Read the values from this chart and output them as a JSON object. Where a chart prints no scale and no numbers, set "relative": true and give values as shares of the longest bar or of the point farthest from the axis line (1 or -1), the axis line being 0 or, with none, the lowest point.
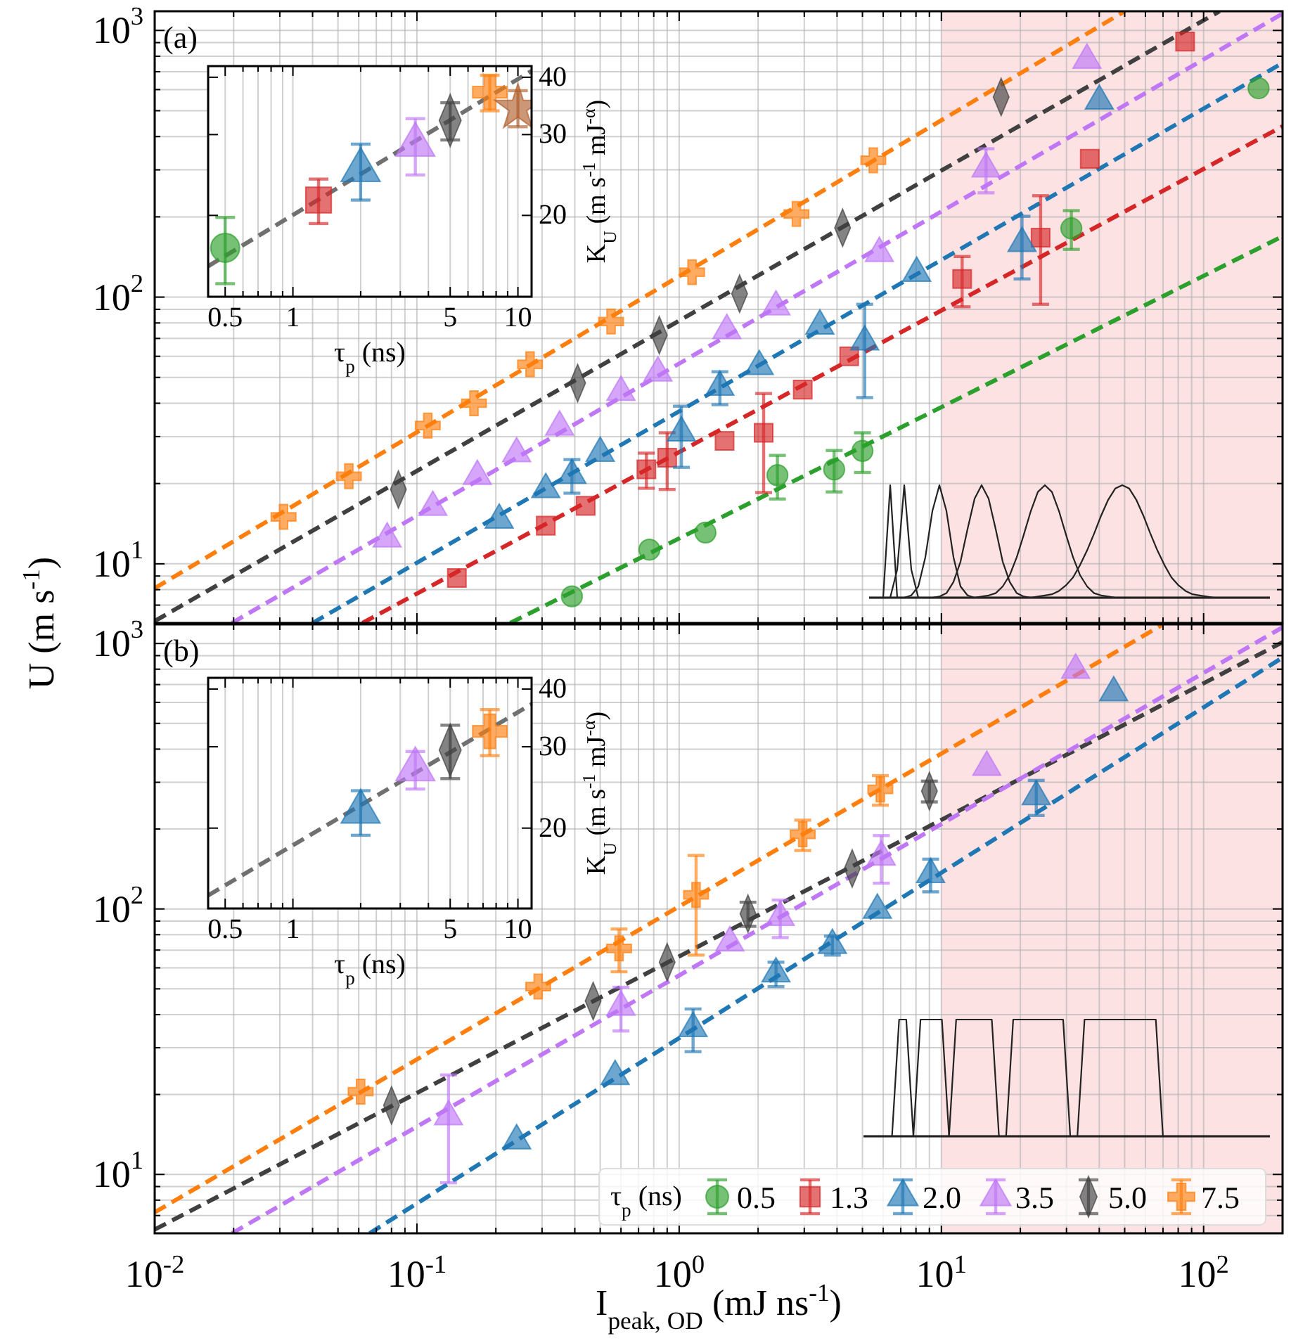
{
  "chart_data": [
    {
      "type": "scatter",
      "log": "xy",
      "xlim": [
        0.01,
        200
      ],
      "ylim": [
        6,
        1180
      ],
      "xticks": [
        {
          "value": 0.01,
          "label": null
        },
        {
          "value": 0.02,
          "label": null
        },
        {
          "value": 0.03,
          "label": null
        },
        {
          "value": 0.04,
          "label": null
        },
        {
          "value": 0.05,
          "label": null
        },
        {
          "value": 0.06,
          "label": null
        },
        {
          "value": 0.07,
          "label": null
        },
        {
          "value": 0.08,
          "label": null
        },
        {
          "value": 0.09,
          "label": null
        },
        {
          "value": 0.1,
          "label": null
        },
        {
          "value": 0.2,
          "label": null
        },
        {
          "value": 0.3,
          "label": null
        },
        {
          "value": 0.4,
          "label": null
        },
        {
          "value": 0.5,
          "label": null
        },
        {
          "value": 0.6,
          "label": null
        },
        {
          "value": 0.7,
          "label": null
        },
        {
          "value": 0.8,
          "label": null
        },
        {
          "value": 0.9,
          "label": null
        },
        {
          "value": 1,
          "label": null
        },
        {
          "value": 2,
          "label": null
        },
        {
          "value": 3,
          "label": null
        },
        {
          "value": 4,
          "label": null
        },
        {
          "value": 5,
          "label": null
        },
        {
          "value": 6,
          "label": null
        },
        {
          "value": 7,
          "label": null
        },
        {
          "value": 8,
          "label": null
        },
        {
          "value": 9,
          "label": null
        },
        {
          "value": 10,
          "label": null
        },
        {
          "value": 20,
          "label": null
        },
        {
          "value": 30,
          "label": null
        },
        {
          "value": 40,
          "label": null
        },
        {
          "value": 50,
          "label": null
        },
        {
          "value": 60,
          "label": null
        },
        {
          "value": 70,
          "label": null
        },
        {
          "value": 80,
          "label": null
        },
        {
          "value": 90,
          "label": null
        },
        {
          "value": 100,
          "label": null
        },
        {
          "value": 200,
          "label": null
        }
      ],
      "yticks": [
        {
          "value": 6,
          "label": null
        },
        {
          "value": 7,
          "label": null
        },
        {
          "value": 8,
          "label": null
        },
        {
          "value": 9,
          "label": null
        },
        {
          "value": 10,
          "label": "10$^{1}$"
        },
        {
          "value": 20,
          "label": null
        },
        {
          "value": 30,
          "label": null
        },
        {
          "value": 40,
          "label": null
        },
        {
          "value": 50,
          "label": null
        },
        {
          "value": 60,
          "label": null
        },
        {
          "value": 70,
          "label": null
        },
        {
          "value": 80,
          "label": null
        },
        {
          "value": 90,
          "label": null
        },
        {
          "value": 100,
          "label": "10$^{2}$"
        },
        {
          "value": 200,
          "label": null
        },
        {
          "value": 300,
          "label": null
        },
        {
          "value": 400,
          "label": null
        },
        {
          "value": 500,
          "label": null
        },
        {
          "value": 600,
          "label": null
        },
        {
          "value": 700,
          "label": null
        },
        {
          "value": 800,
          "label": null
        },
        {
          "value": 900,
          "label": null
        },
        {
          "value": 1000,
          "label": "10$^{3}$"
        }
      ],
      "tick_labels": "y",
      "grid": true,
      "ylabel": "U (m s$^{-1}$)",
      "annotations": [
        "(a)"
      ],
      "bands": [
        {
          "axis": "x",
          "from": 10,
          "to": 200,
          "color": "#fde2e4"
        }
      ],
      "series": [
        {
          "type": "line",
          "line_style": "dashed",
          "color": "#ff7f0e",
          "x": [
            0.01,
            50
          ],
          "values": [
            8.1,
            1180
          ]
        },
        {
          "type": "line",
          "line_style": "dashed",
          "color": "#404040",
          "x": [
            0.01,
            115
          ],
          "values": [
            6.1,
            1180
          ]
        },
        {
          "type": "line",
          "line_style": "dashed",
          "color": "#bf77f6",
          "x": [
            0.0197,
            200
          ],
          "values": [
            6,
            1156
          ]
        },
        {
          "type": "line",
          "line_style": "dashed",
          "color": "#1f77b4",
          "x": [
            0.04,
            200
          ],
          "values": [
            6,
            755
          ]
        },
        {
          "type": "line",
          "line_style": "dashed",
          "color": "#d62728",
          "x": [
            0.062,
            200
          ],
          "values": [
            6,
            437
          ]
        },
        {
          "type": "line",
          "line_style": "dashed",
          "color": "#2ca02c",
          "x": [
            0.227,
            200
          ],
          "values": [
            6,
            169
          ]
        },
        {
          "marker": "circle",
          "color": "#2ca02c",
          "x": [
            0.39,
            0.77,
            1.26,
            2.37,
            3.9,
            5.0,
            31.3,
            162
          ],
          "values": [
            7.55,
            11.3,
            13.1,
            21.5,
            22.6,
            26.5,
            181,
            607
          ],
          "errors": [
            null,
            null,
            null,
            4,
            4,
            4.5,
            30,
            null
          ]
        },
        {
          "marker": "square",
          "color": "#d62728",
          "x": [
            0.142,
            0.31,
            0.44,
            0.75,
            0.9,
            1.49,
            2.1,
            2.96,
            4.45,
            12,
            23.9,
            36.8,
            85
          ],
          "values": [
            8.85,
            13.9,
            16.5,
            22.6,
            25,
            28.9,
            31,
            45,
            60,
            117,
            167,
            330,
            908
          ],
          "errors": [
            null,
            null,
            null,
            3.4,
            6,
            null,
            12.5,
            null,
            null,
            25,
            73,
            null,
            null
          ]
        },
        {
          "marker": "triangle",
          "color": "#1f77b4",
          "x": [
            0.206,
            0.31,
            0.39,
            0.5,
            1.02,
            1.43,
            2.02,
            3.44,
            5.1,
            8.05,
            20.3,
            40
          ],
          "values": [
            14.6,
            19,
            21.5,
            26,
            31,
            46,
            55,
            78,
            68,
            123,
            159,
            544
          ],
          "errors": [
            null,
            null,
            3.1,
            null,
            8,
            6.5,
            null,
            null,
            26,
            null,
            42,
            null
          ]
        },
        {
          "marker": "triangle",
          "color": "#bf77f6",
          "x": [
            0.077,
            0.115,
            0.17,
            0.24,
            0.35,
            0.6,
            0.83,
            1.52,
            2.34,
            5.8,
            14.8,
            35.9
          ],
          "values": [
            12.4,
            16.3,
            21.3,
            25.9,
            32.6,
            44,
            52,
            75,
            92,
            146,
            303,
            774
          ],
          "errors": [
            null,
            null,
            null,
            null,
            null,
            null,
            null,
            null,
            null,
            null,
            57,
            null
          ]
        },
        {
          "marker": "diamond",
          "color": "#404040",
          "x": [
            0.085,
            0.41,
            0.84,
            1.7,
            4.2,
            16.9
          ],
          "values": [
            19,
            47.6,
            72,
            103,
            182,
            563
          ]
        },
        {
          "marker": "cross",
          "color": "#ff7f0e",
          "x": [
            0.031,
            0.055,
            0.11,
            0.165,
            0.27,
            0.55,
            1.12,
            2.8,
            5.5
          ],
          "values": [
            15,
            21.3,
            33,
            40,
            56,
            81,
            124,
            205,
            326
          ]
        }
      ]
    },
    {
      "type": "scatter",
      "log": "xy",
      "xlim": [
        0.42,
        11.5
      ],
      "ylim": [
        13.3,
        42.3
      ],
      "xticks": [
        0.5,
        {
          "value": 0.6,
          "label": null
        },
        {
          "value": 0.7,
          "label": null
        },
        {
          "value": 0.8,
          "label": null
        },
        {
          "value": 0.9,
          "label": null
        },
        1,
        {
          "value": 2,
          "label": null
        },
        {
          "value": 3,
          "label": null
        },
        {
          "value": 4,
          "label": null
        },
        5,
        {
          "value": 6,
          "label": null
        },
        {
          "value": 7,
          "label": null
        },
        {
          "value": 8,
          "label": null
        },
        {
          "value": 9,
          "label": null
        },
        10
      ],
      "yticks": [
        20,
        30,
        40
      ],
      "grid": "x",
      "xlabel": "τ$_{p}$ (ns)",
      "ylabel": "K$_{U}$ (m s$^{-1}$ mJ$^{-α}$)",
      "series": [
        {
          "type": "line",
          "line_style": "dashed",
          "color": "#707070",
          "x": [
            0.42,
            11.5
          ],
          "values": [
            15.5,
            41.3
          ]
        },
        {
          "marker": "circle",
          "color": "#2ca02c",
          "x": [
            0.5
          ],
          "values": [
            17
          ],
          "errors": [
            2.8
          ]
        },
        {
          "marker": "square",
          "color": "#d62728",
          "x": [
            1.3
          ],
          "values": [
            21.6
          ],
          "errors": [
            2.4
          ]
        },
        {
          "marker": "triangle",
          "color": "#1f77b4",
          "x": [
            2.0
          ],
          "values": [
            25.1
          ],
          "errors": [
            3.5
          ]
        },
        {
          "marker": "triangle",
          "color": "#bf77f6",
          "x": [
            3.5
          ],
          "values": [
            28.5
          ],
          "errors": [
            4
          ]
        },
        {
          "marker": "diamond",
          "color": "#404040",
          "x": [
            5.0
          ],
          "values": [
            32.2
          ],
          "errors": [
            3
          ]
        },
        {
          "marker": "cross",
          "color": "#ff7f0e",
          "x": [
            7.5
          ],
          "values": [
            37.1
          ],
          "errors": [
            3.3
          ]
        },
        {
          "marker": "star",
          "color": "#b0602c",
          "x": [
            10
          ],
          "values": [
            34.3
          ],
          "errors": [
            3.1
          ]
        }
      ]
    },
    {
      "type": "scatter",
      "log": "xy",
      "xlim": [
        0.01,
        200
      ],
      "ylim": [
        6,
        1180
      ],
      "xticks": [
        {
          "value": 0.01,
          "label": "10$^{-2}$"
        },
        {
          "value": 0.02,
          "label": null
        },
        {
          "value": 0.03,
          "label": null
        },
        {
          "value": 0.04,
          "label": null
        },
        {
          "value": 0.05,
          "label": null
        },
        {
          "value": 0.06,
          "label": null
        },
        {
          "value": 0.07,
          "label": null
        },
        {
          "value": 0.08,
          "label": null
        },
        {
          "value": 0.09,
          "label": null
        },
        {
          "value": 0.1,
          "label": "10$^{-1}$"
        },
        {
          "value": 0.2,
          "label": null
        },
        {
          "value": 0.3,
          "label": null
        },
        {
          "value": 0.4,
          "label": null
        },
        {
          "value": 0.5,
          "label": null
        },
        {
          "value": 0.6,
          "label": null
        },
        {
          "value": 0.7,
          "label": null
        },
        {
          "value": 0.8,
          "label": null
        },
        {
          "value": 0.9,
          "label": null
        },
        {
          "value": 1,
          "label": "10$^{0}$"
        },
        {
          "value": 2,
          "label": null
        },
        {
          "value": 3,
          "label": null
        },
        {
          "value": 4,
          "label": null
        },
        {
          "value": 5,
          "label": null
        },
        {
          "value": 6,
          "label": null
        },
        {
          "value": 7,
          "label": null
        },
        {
          "value": 8,
          "label": null
        },
        {
          "value": 9,
          "label": null
        },
        {
          "value": 10,
          "label": "10$^{1}$"
        },
        {
          "value": 20,
          "label": null
        },
        {
          "value": 30,
          "label": null
        },
        {
          "value": 40,
          "label": null
        },
        {
          "value": 50,
          "label": null
        },
        {
          "value": 60,
          "label": null
        },
        {
          "value": 70,
          "label": null
        },
        {
          "value": 80,
          "label": null
        },
        {
          "value": 90,
          "label": null
        },
        {
          "value": 100,
          "label": "10$^{2}$"
        },
        {
          "value": 200,
          "label": null
        }
      ],
      "yticks": [
        {
          "value": 6,
          "label": null
        },
        {
          "value": 7,
          "label": null
        },
        {
          "value": 8,
          "label": null
        },
        {
          "value": 9,
          "label": null
        },
        {
          "value": 10,
          "label": "10$^{1}$"
        },
        {
          "value": 20,
          "label": null
        },
        {
          "value": 30,
          "label": null
        },
        {
          "value": 40,
          "label": null
        },
        {
          "value": 50,
          "label": null
        },
        {
          "value": 60,
          "label": null
        },
        {
          "value": 70,
          "label": null
        },
        {
          "value": 80,
          "label": null
        },
        {
          "value": 90,
          "label": null
        },
        {
          "value": 100,
          "label": "10$^{2}$"
        },
        {
          "value": 200,
          "label": null
        },
        {
          "value": 300,
          "label": null
        },
        {
          "value": 400,
          "label": null
        },
        {
          "value": 500,
          "label": null
        },
        {
          "value": 600,
          "label": null
        },
        {
          "value": 700,
          "label": null
        },
        {
          "value": 800,
          "label": null
        },
        {
          "value": 900,
          "label": null
        },
        {
          "value": 1000,
          "label": "10$^{3}$"
        }
      ],
      "grid": true,
      "xlabel": "I$_{peak, OD}$ (mJ ns$^{-1}$)",
      "annotations": [
        "(b)"
      ],
      "legend": "bottom right",
      "legend_title": "τ$_{p}$ (ns)",
      "bands": [
        {
          "axis": "x",
          "from": 10,
          "to": 200,
          "color": "#fde2e4"
        }
      ],
      "series": [
        {
          "type": "line",
          "line_style": "dashed",
          "color": "#ff7f0e",
          "x": [
            0.01,
            70
          ],
          "values": [
            7.2,
            1180
          ]
        },
        {
          "type": "line",
          "line_style": "dashed",
          "color": "#404040",
          "x": [
            0.01,
            200
          ],
          "values": [
            6.2,
            1011
          ]
        },
        {
          "type": "line",
          "line_style": "dashed",
          "color": "#bf77f6",
          "x": [
            0.0197,
            200
          ],
          "values": [
            6,
            1150
          ]
        },
        {
          "type": "line",
          "line_style": "dashed",
          "color": "#1f77b4",
          "x": [
            0.066,
            200
          ],
          "values": [
            6,
            885
          ]
        },
        {
          "name": "0.5",
          "marker": "circle",
          "color": "#2ca02c"
        },
        {
          "name": "1.3",
          "marker": "square",
          "color": "#d62728"
        },
        {
          "name": "2.0",
          "marker": "triangle",
          "color": "#1f77b4",
          "x": [
            0.24,
            0.57,
            1.13,
            2.34,
            3.84,
            5.7,
            9.1,
            23,
            45.4
          ],
          "values": [
            13.4,
            23.4,
            35.5,
            57,
            73,
            99,
            135,
            265,
            653
          ],
          "errors": [
            null,
            null,
            6.5,
            6,
            6,
            null,
            19,
            40,
            null
          ]
        },
        {
          "name": "3.5",
          "marker": "triangle",
          "color": "#bf77f6",
          "x": [
            0.132,
            0.6,
            1.56,
            2.43,
            5.9,
            14.9,
            32.5
          ],
          "values": [
            16.5,
            42.7,
            74.6,
            93,
            157,
            342,
            794
          ],
          "errors": [
            7.2,
            8,
            null,
            15,
            32,
            null,
            null
          ]
        },
        {
          "name": "5.0",
          "marker": "diamond",
          "color": "#404040",
          "x": [
            0.08,
            0.47,
            0.9,
            1.83,
            4.57,
            9
          ],
          "values": [
            18.2,
            45,
            63,
            96,
            142,
            278
          ],
          "errors": [
            null,
            null,
            null,
            10,
            null,
            25
          ]
        },
        {
          "name": "7.5",
          "marker": "cross",
          "color": "#ff7f0e",
          "x": [
            0.061,
            0.29,
            0.59,
            1.16,
            2.96,
            5.85
          ],
          "values": [
            20.5,
            51,
            71,
            113,
            191,
            282
          ],
          "errors": [
            null,
            null,
            13,
            46,
            25,
            36
          ]
        }
      ]
    },
    {
      "type": "scatter",
      "log": "xy",
      "xlim": [
        0.42,
        11.5
      ],
      "ylim": [
        13.4,
        42.3
      ],
      "xticks": [
        0.5,
        {
          "value": 0.6,
          "label": null
        },
        {
          "value": 0.7,
          "label": null
        },
        {
          "value": 0.8,
          "label": null
        },
        {
          "value": 0.9,
          "label": null
        },
        1,
        {
          "value": 2,
          "label": null
        },
        {
          "value": 3,
          "label": null
        },
        {
          "value": 4,
          "label": null
        },
        5,
        {
          "value": 6,
          "label": null
        },
        {
          "value": 7,
          "label": null
        },
        {
          "value": 8,
          "label": null
        },
        {
          "value": 9,
          "label": null
        },
        10
      ],
      "yticks": [
        20,
        30,
        40
      ],
      "grid": "x",
      "xlabel": "τ$_{p}$ (ns)",
      "ylabel": "K$_{U}$ (m s$^{-1}$ mJ$^{-α}$)",
      "series": [
        {
          "type": "line",
          "line_style": "dashed",
          "color": "#707070",
          "x": [
            0.42,
            11.5
          ],
          "values": [
            14.3,
            37.1
          ]
        },
        {
          "marker": "triangle",
          "color": "#1f77b4",
          "x": [
            2.0
          ],
          "values": [
            21.7
          ],
          "errors": [
            2.4
          ]
        },
        {
          "marker": "triangle",
          "color": "#bf77f6",
          "x": [
            3.5
          ],
          "values": [
            26.8
          ],
          "errors": [
            2.5
          ]
        },
        {
          "marker": "diamond",
          "color": "#404040",
          "x": [
            5.0
          ],
          "values": [
            29.5
          ],
          "errors": [
            3.9
          ]
        },
        {
          "marker": "cross",
          "color": "#ff7f0e",
          "x": [
            7.5
          ],
          "values": [
            32.4
          ],
          "errors": [
            3.7
          ]
        }
      ]
    },
    {
      "type": "line",
      "relative": true,
      "categories": [
        null,
        null,
        null,
        null,
        null,
        null,
        null,
        null,
        null,
        null,
        null,
        null,
        null,
        null,
        null,
        null,
        null,
        null,
        null,
        null,
        null,
        null,
        null,
        null,
        null,
        null,
        null,
        null,
        null,
        null,
        null,
        null,
        null,
        null,
        null,
        null,
        null,
        null,
        null,
        null,
        null,
        null,
        null,
        null,
        null,
        null,
        null,
        null,
        null,
        null,
        null,
        null,
        null,
        null,
        null,
        null,
        null,
        null
      ],
      "series": [
        {
          "color": "#222222",
          "values": [
            0,
            0,
            0,
            1,
            0,
            0,
            0,
            0,
            0,
            0,
            0,
            0,
            0,
            0,
            0,
            0,
            0,
            0,
            0,
            0,
            0,
            0,
            0,
            0,
            0,
            0,
            0,
            0,
            0,
            0,
            0,
            0,
            0,
            0,
            0,
            0,
            0,
            0,
            0,
            0,
            0,
            0,
            0,
            0,
            0,
            0,
            0,
            0,
            0,
            0,
            0,
            0,
            0,
            0,
            0,
            0,
            0,
            0
          ]
        },
        {
          "color": "#222222",
          "values": [
            0,
            0,
            0,
            0,
            0.25,
            1,
            0.25,
            0,
            0,
            0,
            0,
            0,
            0,
            0,
            0,
            0,
            0,
            0,
            0,
            0,
            0,
            0,
            0,
            0,
            0,
            0,
            0,
            0,
            0,
            0,
            0,
            0,
            0,
            0,
            0,
            0,
            0,
            0,
            0,
            0,
            0,
            0,
            0,
            0,
            0,
            0,
            0,
            0,
            0,
            0,
            0,
            0,
            0,
            0,
            0,
            0,
            0,
            0
          ]
        },
        {
          "color": "#222222",
          "values": [
            0,
            0,
            0,
            0,
            0,
            0,
            0.02,
            0.1,
            0.36,
            0.77,
            1,
            0.77,
            0.36,
            0.1,
            0.02,
            0,
            0,
            0,
            0,
            0,
            0,
            0,
            0,
            0,
            0,
            0,
            0,
            0,
            0,
            0,
            0,
            0,
            0,
            0,
            0,
            0,
            0,
            0,
            0,
            0,
            0,
            0,
            0,
            0,
            0,
            0,
            0,
            0,
            0,
            0,
            0,
            0,
            0,
            0,
            0,
            0,
            0,
            0
          ]
        },
        {
          "color": "#222222",
          "values": [
            0,
            0,
            0,
            0,
            0,
            0,
            0,
            0,
            0,
            0,
            0.01,
            0.04,
            0.14,
            0.32,
            0.61,
            0.88,
            1,
            0.88,
            0.61,
            0.32,
            0.14,
            0.04,
            0.01,
            0,
            0,
            0,
            0,
            0,
            0,
            0,
            0,
            0,
            0,
            0,
            0,
            0,
            0,
            0,
            0,
            0,
            0,
            0,
            0,
            0,
            0,
            0,
            0,
            0,
            0,
            0,
            0,
            0,
            0,
            0,
            0,
            0,
            0,
            0
          ]
        },
        {
          "color": "#222222",
          "values": [
            0,
            0,
            0,
            0,
            0,
            0,
            0,
            0,
            0,
            0,
            0,
            0,
            0,
            0,
            0,
            0,
            0.01,
            0.02,
            0.04,
            0.1,
            0.2,
            0.36,
            0.56,
            0.77,
            0.94,
            1,
            0.94,
            0.77,
            0.56,
            0.36,
            0.2,
            0.1,
            0.04,
            0.02,
            0.01,
            0,
            0,
            0,
            0,
            0,
            0,
            0,
            0,
            0,
            0,
            0,
            0,
            0,
            0,
            0,
            0,
            0,
            0,
            0,
            0,
            0,
            0,
            0
          ]
        },
        {
          "color": "#222222",
          "values": [
            0,
            0,
            0,
            0,
            0,
            0,
            0,
            0,
            0,
            0,
            0,
            0,
            0,
            0,
            0,
            0,
            0,
            0,
            0,
            0,
            0,
            0,
            0,
            0,
            0.01,
            0.02,
            0.03,
            0.06,
            0.11,
            0.18,
            0.29,
            0.42,
            0.57,
            0.73,
            0.87,
            0.97,
            1,
            0.97,
            0.87,
            0.73,
            0.57,
            0.42,
            0.29,
            0.18,
            0.11,
            0.06,
            0.03,
            0.02,
            0.01,
            0,
            0,
            0,
            0,
            0,
            0,
            0,
            0,
            0
          ]
        }
      ]
    },
    {
      "type": "line",
      "relative": true,
      "categories": [
        null,
        null,
        null,
        null,
        null,
        null,
        null,
        null,
        null,
        null,
        null,
        null,
        null,
        null,
        null,
        null,
        null,
        null,
        null,
        null,
        null,
        null,
        null,
        null,
        null,
        null,
        null,
        null,
        null,
        null,
        null,
        null,
        null,
        null,
        null,
        null,
        null,
        null,
        null,
        null,
        null,
        null,
        null,
        null,
        null,
        null,
        null,
        null,
        null,
        null,
        null,
        null,
        null,
        null,
        null,
        null,
        null,
        null
      ],
      "series": [
        {
          "color": "#222222",
          "values": [
            0,
            0,
            0,
            0,
            0,
            1,
            1,
            0,
            0,
            0,
            0,
            0,
            0,
            0,
            0,
            0,
            0,
            0,
            0,
            0,
            0,
            0,
            0,
            0,
            0,
            0,
            0,
            0,
            0,
            0,
            0,
            0,
            0,
            0,
            0,
            0,
            0,
            0,
            0,
            0,
            0,
            0,
            0,
            0,
            0,
            0,
            0,
            0,
            0,
            0,
            0,
            0,
            0,
            0,
            0,
            0,
            0,
            0
          ]
        },
        {
          "color": "#222222",
          "values": [
            0,
            0,
            0,
            0,
            0,
            0,
            0,
            0,
            1,
            1,
            1,
            1,
            0,
            0,
            0,
            0,
            0,
            0,
            0,
            0,
            0,
            0,
            0,
            0,
            0,
            0,
            0,
            0,
            0,
            0,
            0,
            0,
            0,
            0,
            0,
            0,
            0,
            0,
            0,
            0,
            0,
            0,
            0,
            0,
            0,
            0,
            0,
            0,
            0,
            0,
            0,
            0,
            0,
            0,
            0,
            0,
            0,
            0
          ]
        },
        {
          "color": "#222222",
          "values": [
            0,
            0,
            0,
            0,
            0,
            0,
            0,
            0,
            0,
            0,
            0,
            0,
            0,
            1,
            1,
            1,
            1,
            1,
            1,
            0,
            0,
            0,
            0,
            0,
            0,
            0,
            0,
            0,
            0,
            0,
            0,
            0,
            0,
            0,
            0,
            0,
            0,
            0,
            0,
            0,
            0,
            0,
            0,
            0,
            0,
            0,
            0,
            0,
            0,
            0,
            0,
            0,
            0,
            0,
            0,
            0,
            0,
            0
          ]
        },
        {
          "color": "#222222",
          "values": [
            0,
            0,
            0,
            0,
            0,
            0,
            0,
            0,
            0,
            0,
            0,
            0,
            0,
            0,
            0,
            0,
            0,
            0,
            0,
            0,
            0,
            1,
            1,
            1,
            1,
            1,
            1,
            1,
            1,
            0,
            0,
            0,
            0,
            0,
            0,
            0,
            0,
            0,
            0,
            0,
            0,
            0,
            0,
            0,
            0,
            0,
            0,
            0,
            0,
            0,
            0,
            0,
            0,
            0,
            0,
            0,
            0,
            0
          ]
        },
        {
          "color": "#222222",
          "values": [
            0,
            0,
            0,
            0,
            0,
            0,
            0,
            0,
            0,
            0,
            0,
            0,
            0,
            0,
            0,
            0,
            0,
            0,
            0,
            0,
            0,
            0,
            0,
            0,
            0,
            0,
            0,
            0,
            0,
            0,
            0,
            1,
            1,
            1,
            1,
            1,
            1,
            1,
            1,
            1,
            1,
            1,
            0,
            0,
            0,
            0,
            0,
            0,
            0,
            0,
            0,
            0,
            0,
            0,
            0,
            0,
            0,
            0
          ]
        }
      ]
    }
  ]
}
